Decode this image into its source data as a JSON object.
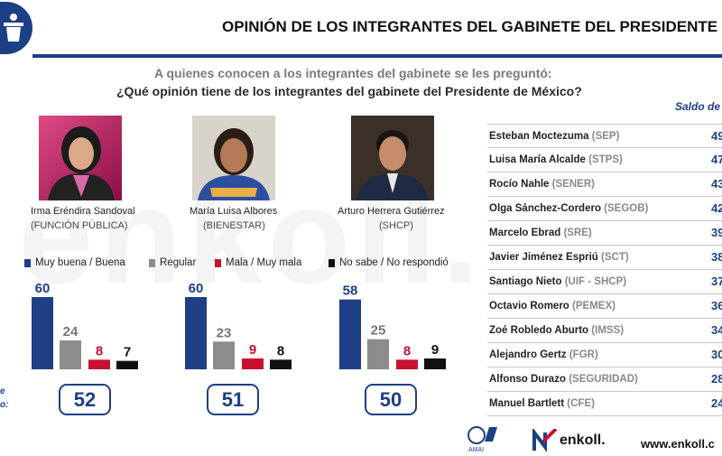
{
  "header": {
    "title": "OPINIÓN DE LOS INTEGRANTES DEL GABINETE DEL PRESIDENTE DE MÉX",
    "logo_icon": "podium-icon"
  },
  "question": {
    "line1": "A quienes conocen a los integrantes del gabinete se les preguntó:",
    "line2": "¿Qué opinión tiene de los integrantes del gabinete del Presidente de México?"
  },
  "watermark": "enkoll.",
  "legend": [
    {
      "label": "Muy buena / Buena",
      "color": "#1d3f85"
    },
    {
      "label": "Regular",
      "color": "#8c8c8c"
    },
    {
      "label": "Mala / Muy mala",
      "color": "#c8102e"
    },
    {
      "label": "No sabe / No respondió",
      "color": "#111111"
    }
  ],
  "people": [
    {
      "name": "Irma Eréndira Sandoval",
      "org": "(FUNCIÓN PÚBLICA)",
      "score": "52"
    },
    {
      "name": "María Luisa Albores",
      "org": "(BIENESTAR)",
      "score": "51"
    },
    {
      "name": "Arturo Herrera Gutiérrez",
      "org": "(SHCP)",
      "score": "50"
    }
  ],
  "side_fragment": {
    "line1": "e",
    "line2": "o:"
  },
  "chart_data": {
    "type": "bar",
    "title": "",
    "xlabel": "",
    "ylabel": "",
    "categories": [
      "Irma Eréndira Sandoval",
      "María Luisa Albores",
      "Arturo Herrera Gutiérrez"
    ],
    "series": [
      {
        "name": "Muy buena / Buena",
        "values": [
          60,
          60,
          58
        ],
        "color": "#1d3f85"
      },
      {
        "name": "Regular",
        "values": [
          24,
          23,
          25
        ],
        "color": "#8c8c8c"
      },
      {
        "name": "Mala / Muy mala",
        "values": [
          8,
          9,
          8
        ],
        "color": "#c8102e"
      },
      {
        "name": "No sabe / No respondió",
        "values": [
          7,
          8,
          9
        ],
        "color": "#111111"
      }
    ],
    "ylim": [
      0,
      60
    ],
    "grid": false,
    "legend_placement": "top"
  },
  "ranking": {
    "header": "Saldo de o",
    "rows": [
      {
        "name": "Esteban Moctezuma",
        "org": "(SEP)",
        "value": "49"
      },
      {
        "name": "Luisa María Alcalde",
        "org": "(STPS)",
        "value": "47"
      },
      {
        "name": "Rocío Nahle",
        "org": "(SENER)",
        "value": "43"
      },
      {
        "name": "Olga Sánchez-Cordero",
        "org": "(SEGOB)",
        "value": "42"
      },
      {
        "name": "Marcelo Ebrad",
        "org": "(SRE)",
        "value": "39"
      },
      {
        "name": "Javier Jiménez Espriú",
        "org": "(SCT)",
        "value": "38"
      },
      {
        "name": "Santiago Nieto",
        "org": "(UIF - SHCP)",
        "value": "37"
      },
      {
        "name": "Octavio Romero",
        "org": "(PEMEX)",
        "value": "36"
      },
      {
        "name": "Zoé Robledo Aburto",
        "org": "(IMSS)",
        "value": "34"
      },
      {
        "name": "Alejandro Gertz",
        "org": "(FGR)",
        "value": "30"
      },
      {
        "name": "Alfonso Durazo",
        "org": "(SEGURIDAD)",
        "value": "28"
      },
      {
        "name": "Manuel Bartlett",
        "org": "(CFE)",
        "value": "24"
      }
    ]
  },
  "footer": {
    "amai_text": "AMAI",
    "brand": "enkoll.",
    "url": "www.enkoll.c"
  }
}
